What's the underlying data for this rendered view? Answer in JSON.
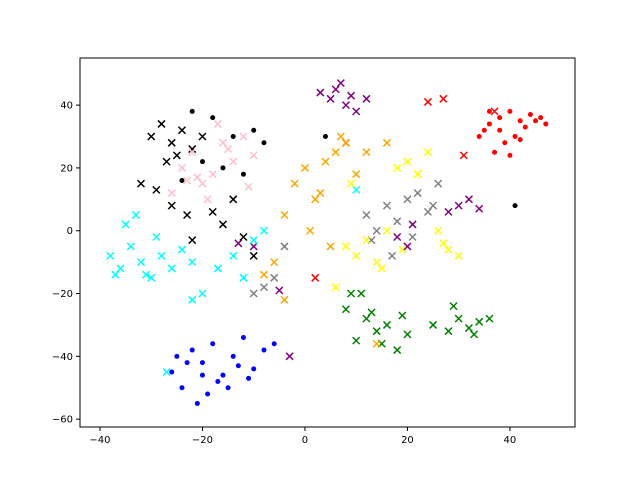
{
  "chart_data": {
    "type": "scatter",
    "xlim": [
      -43.9,
      52.7
    ],
    "ylim": [
      -62.5,
      55
    ],
    "xticks": [
      {
        "value": -40,
        "label": "−40"
      },
      {
        "value": -20,
        "label": "−20"
      },
      0,
      20,
      40
    ],
    "yticks": [
      {
        "value": -60,
        "label": "−60"
      },
      {
        "value": -40,
        "label": "−40"
      },
      {
        "value": -20,
        "label": "−20"
      },
      0,
      20,
      40
    ],
    "series": [
      {
        "color": "red",
        "marker": "o",
        "x": [
          34,
          36,
          38,
          40,
          42,
          44,
          46,
          47,
          39,
          37,
          41,
          43,
          35,
          38,
          45,
          40,
          36,
          42
        ],
        "y": [
          30,
          34,
          36,
          38,
          35,
          37,
          36,
          34,
          28,
          25,
          30,
          33,
          32,
          32,
          35,
          24,
          38,
          29
        ]
      },
      {
        "color": "red",
        "marker": "x",
        "x": [
          24,
          27,
          31,
          37,
          2,
          8
        ],
        "y": [
          41,
          42,
          24,
          38,
          -15,
          28
        ]
      },
      {
        "color": "blue",
        "marker": "o",
        "x": [
          -26,
          -24,
          -22,
          -20,
          -18,
          -16,
          -14,
          -12,
          -10,
          -8,
          -6,
          -21,
          -19,
          -17,
          -23,
          -15,
          -11,
          -25,
          -20,
          -13
        ],
        "y": [
          -45,
          -50,
          -38,
          -42,
          -36,
          -46,
          -40,
          -34,
          -44,
          -38,
          -36,
          -55,
          -52,
          -48,
          -42,
          -50,
          -47,
          -40,
          -46,
          -43
        ]
      },
      {
        "color": "green",
        "marker": "x",
        "x": [
          8,
          10,
          12,
          14,
          16,
          18,
          20,
          11,
          15,
          19,
          25,
          28,
          30,
          32,
          34,
          36,
          29,
          33,
          9,
          13
        ],
        "y": [
          -25,
          -35,
          -28,
          -32,
          -30,
          -38,
          -33,
          -20,
          -36,
          -27,
          -30,
          -32,
          -28,
          -31,
          -29,
          -28,
          -24,
          -33,
          -20,
          -26
        ]
      },
      {
        "color": "purple",
        "marker": "x",
        "x": [
          5,
          6,
          7,
          8,
          9,
          10,
          12,
          3,
          30,
          32,
          34,
          28,
          18,
          20,
          21,
          -10,
          -13,
          -3,
          -5
        ],
        "y": [
          42,
          45,
          47,
          40,
          43,
          38,
          42,
          44,
          8,
          10,
          7,
          6,
          -2,
          -5,
          2,
          -5,
          -4,
          -40,
          -19
        ]
      },
      {
        "color": "black",
        "marker": "x",
        "x": [
          -30,
          -28,
          -26,
          -24,
          -22,
          -20,
          -27,
          -25,
          -32,
          -29,
          -26,
          -23,
          -18,
          -16,
          -14,
          -12,
          -10,
          -22
        ],
        "y": [
          30,
          34,
          28,
          32,
          26,
          30,
          22,
          24,
          15,
          13,
          8,
          5,
          6,
          2,
          10,
          -2,
          -8,
          -3
        ]
      },
      {
        "color": "black",
        "marker": "o",
        "x": [
          -22,
          -18,
          -14,
          -10,
          -8,
          -20,
          -16,
          -12,
          -24,
          4,
          41
        ],
        "y": [
          38,
          36,
          30,
          32,
          28,
          22,
          20,
          18,
          16,
          30,
          8
        ]
      },
      {
        "color": "cyan",
        "marker": "x",
        "x": [
          -38,
          -36,
          -34,
          -32,
          -30,
          -28,
          -26,
          -24,
          -22,
          -35,
          -33,
          -31,
          -29,
          -20,
          -17,
          -14,
          -12,
          -10,
          -8,
          -27,
          -22,
          10,
          -37
        ],
        "y": [
          -8,
          -12,
          -5,
          -10,
          -15,
          -8,
          -12,
          -6,
          -10,
          2,
          5,
          -14,
          -2,
          -20,
          -12,
          -8,
          -15,
          -3,
          0,
          -45,
          -22,
          13,
          -14
        ]
      },
      {
        "color": "pink",
        "marker": "x",
        "x": [
          -24,
          -22,
          -20,
          -18,
          -16,
          -14,
          -12,
          -10,
          -26,
          -23,
          -19,
          -15,
          -11,
          -17,
          -21
        ],
        "y": [
          20,
          25,
          15,
          18,
          28,
          22,
          30,
          24,
          12,
          16,
          10,
          26,
          14,
          34,
          17
        ]
      },
      {
        "color": "orange",
        "marker": "x",
        "x": [
          -2,
          0,
          2,
          4,
          6,
          8,
          10,
          -4,
          1,
          3,
          5,
          7,
          12,
          14,
          -6,
          -8,
          -4,
          16
        ],
        "y": [
          15,
          20,
          10,
          22,
          25,
          28,
          18,
          5,
          0,
          12,
          -5,
          30,
          25,
          -36,
          -10,
          -14,
          -22,
          28
        ]
      },
      {
        "color": "gray",
        "marker": "x",
        "x": [
          12,
          14,
          16,
          18,
          20,
          22,
          24,
          26,
          13,
          17,
          21,
          25,
          -8,
          -10,
          -6,
          -4
        ],
        "y": [
          5,
          0,
          8,
          3,
          10,
          12,
          6,
          15,
          -3,
          -8,
          -2,
          8,
          -18,
          -20,
          -15,
          -5
        ]
      },
      {
        "color": "yellow",
        "marker": "x",
        "x": [
          8,
          10,
          12,
          14,
          16,
          18,
          20,
          22,
          24,
          26,
          28,
          30,
          9,
          15,
          19,
          27,
          6
        ],
        "y": [
          -5,
          -8,
          -3,
          -10,
          0,
          20,
          22,
          18,
          25,
          0,
          -6,
          -8,
          15,
          -12,
          -6,
          -4,
          -18
        ]
      }
    ]
  }
}
